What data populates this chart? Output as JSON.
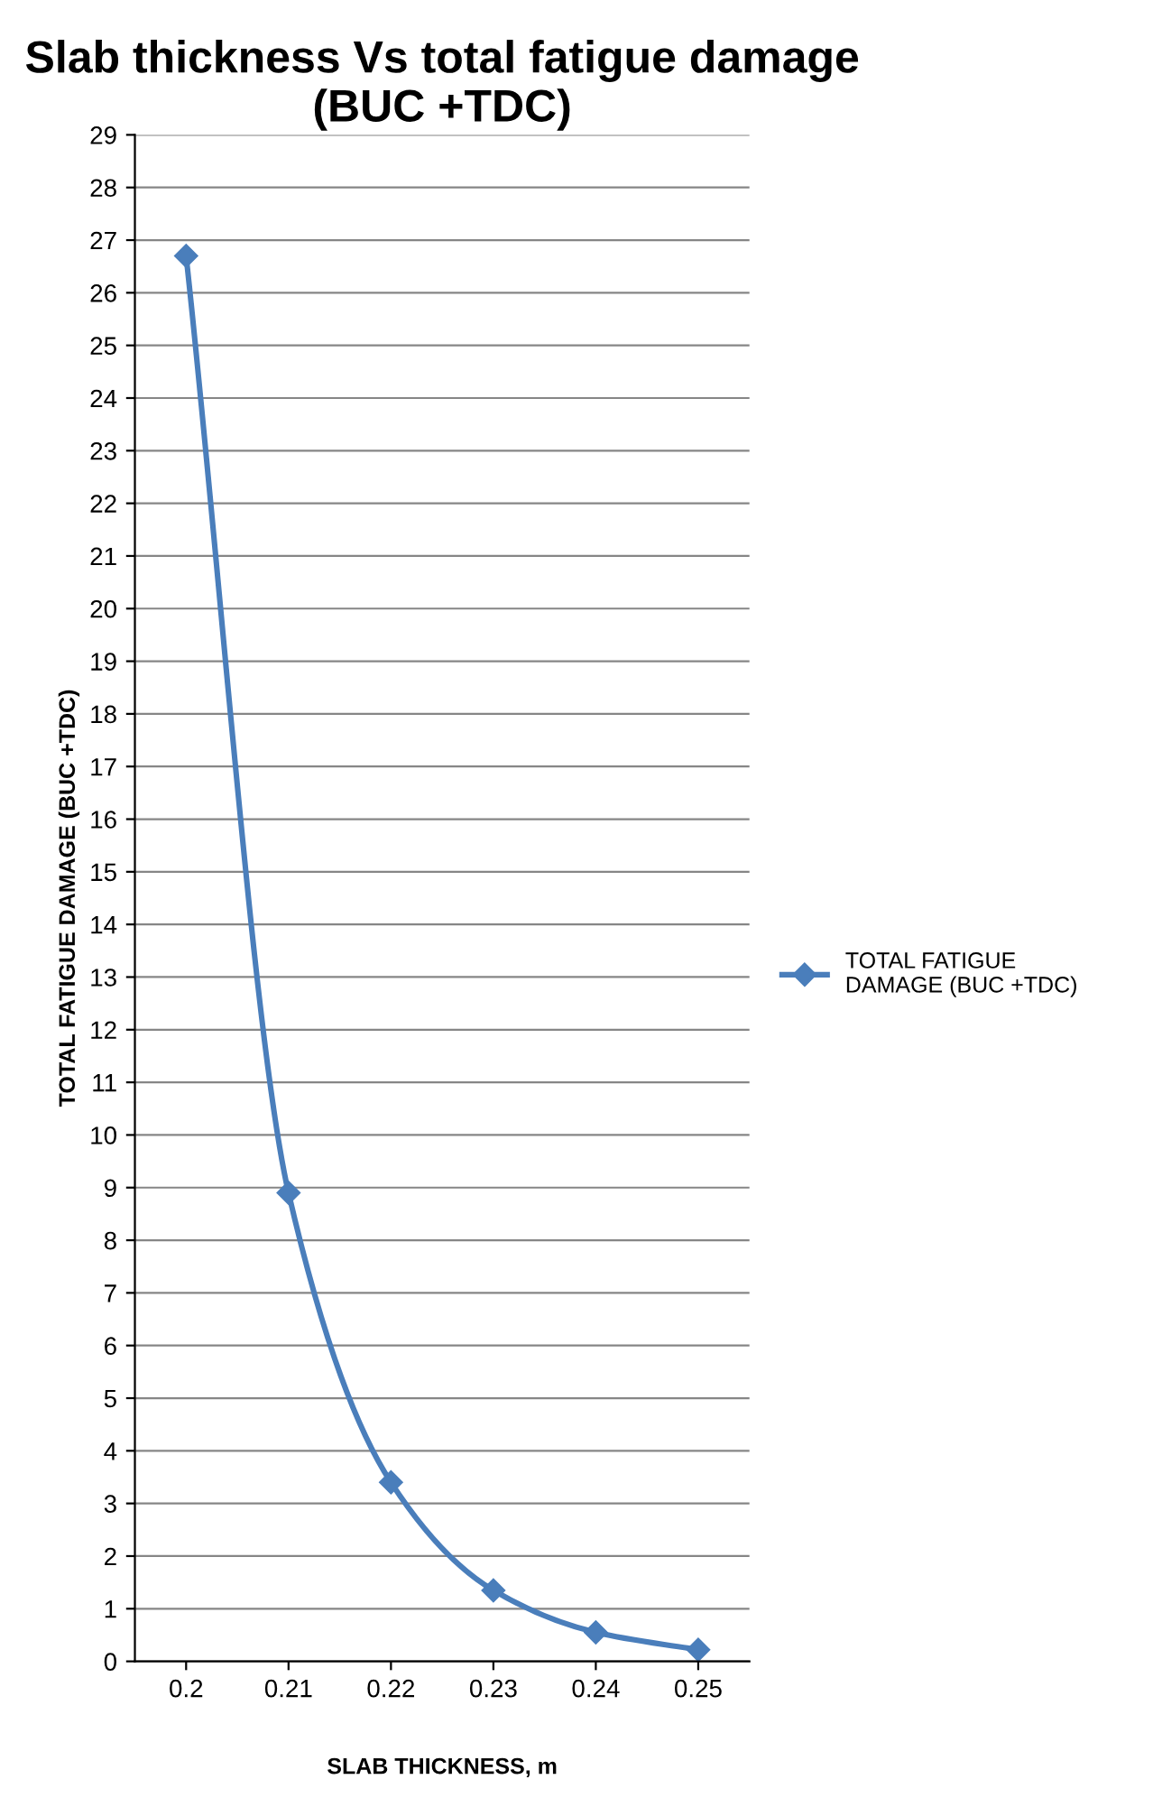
{
  "chart_data": {
    "type": "line",
    "title": "Slab thickness Vs total fatigue damage (BUC +TDC)",
    "xlabel": "SLAB THICKNESS, m",
    "ylabel": "TOTAL FATIGUE DAMAGE (BUC +TDC)",
    "categories": [
      "0.2",
      "0.21",
      "0.22",
      "0.23",
      "0.24",
      "0.25"
    ],
    "series": [
      {
        "name": "TOTAL FATIGUE DAMAGE (BUC +TDC)",
        "color": "#4a7ebb",
        "values": [
          26.7,
          8.9,
          3.4,
          1.35,
          0.55,
          0.22
        ]
      }
    ],
    "ylim": [
      0,
      29
    ],
    "yticks": [
      0,
      1,
      2,
      3,
      4,
      5,
      6,
      7,
      8,
      9,
      10,
      11,
      12,
      13,
      14,
      15,
      16,
      17,
      18,
      19,
      20,
      21,
      22,
      23,
      24,
      25,
      26,
      27,
      28,
      29
    ],
    "grid": "y",
    "legend": "right",
    "marker": "diamond",
    "line_style": "solid"
  }
}
